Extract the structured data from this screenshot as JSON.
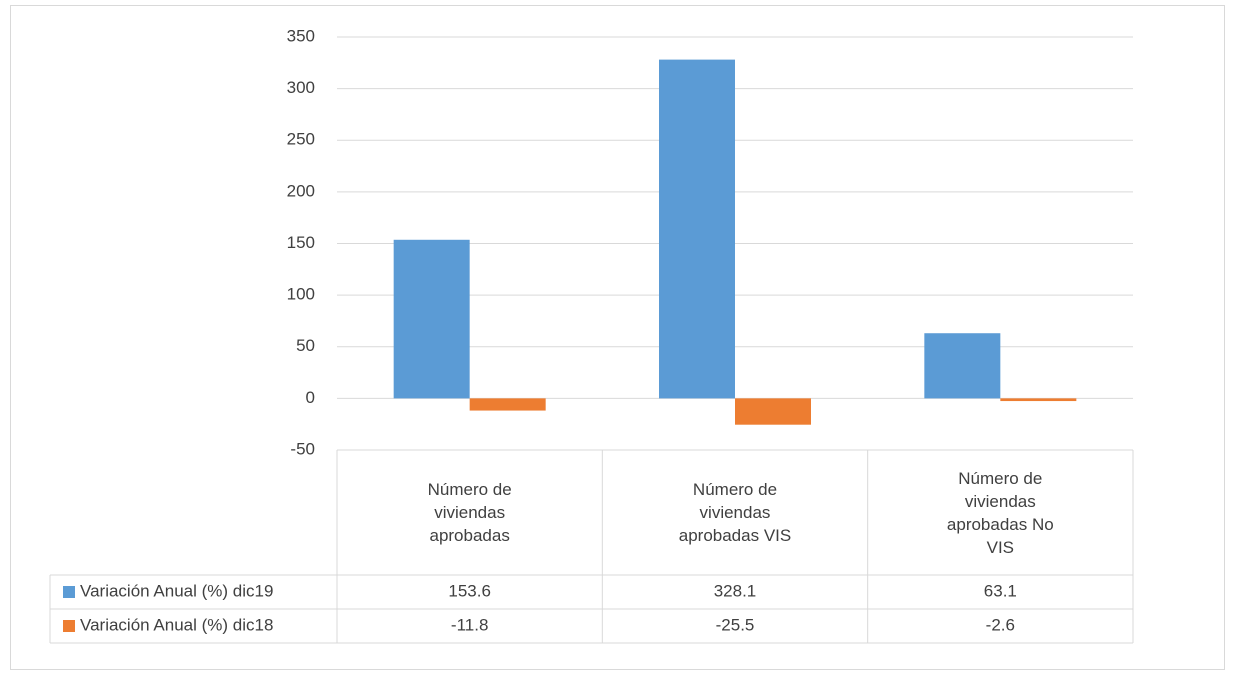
{
  "chart_data": {
    "type": "bar",
    "categories": [
      "Número de viviendas aprobadas",
      "Número de viviendas aprobadas VIS",
      "Número de viviendas aprobadas No VIS"
    ],
    "series": [
      {
        "name": "Variación Anual (%) dic19",
        "color": "#5b9bd5",
        "values": [
          153.6,
          328.1,
          63.1
        ]
      },
      {
        "name": "Variación Anual (%) dic18",
        "color": "#ed7d31",
        "values": [
          -11.8,
          -25.5,
          -2.6
        ]
      }
    ],
    "ylim": [
      -50,
      350
    ],
    "yticks": [
      -50,
      0,
      50,
      100,
      150,
      200,
      250,
      300,
      350
    ],
    "grid": true,
    "data_table": true
  }
}
